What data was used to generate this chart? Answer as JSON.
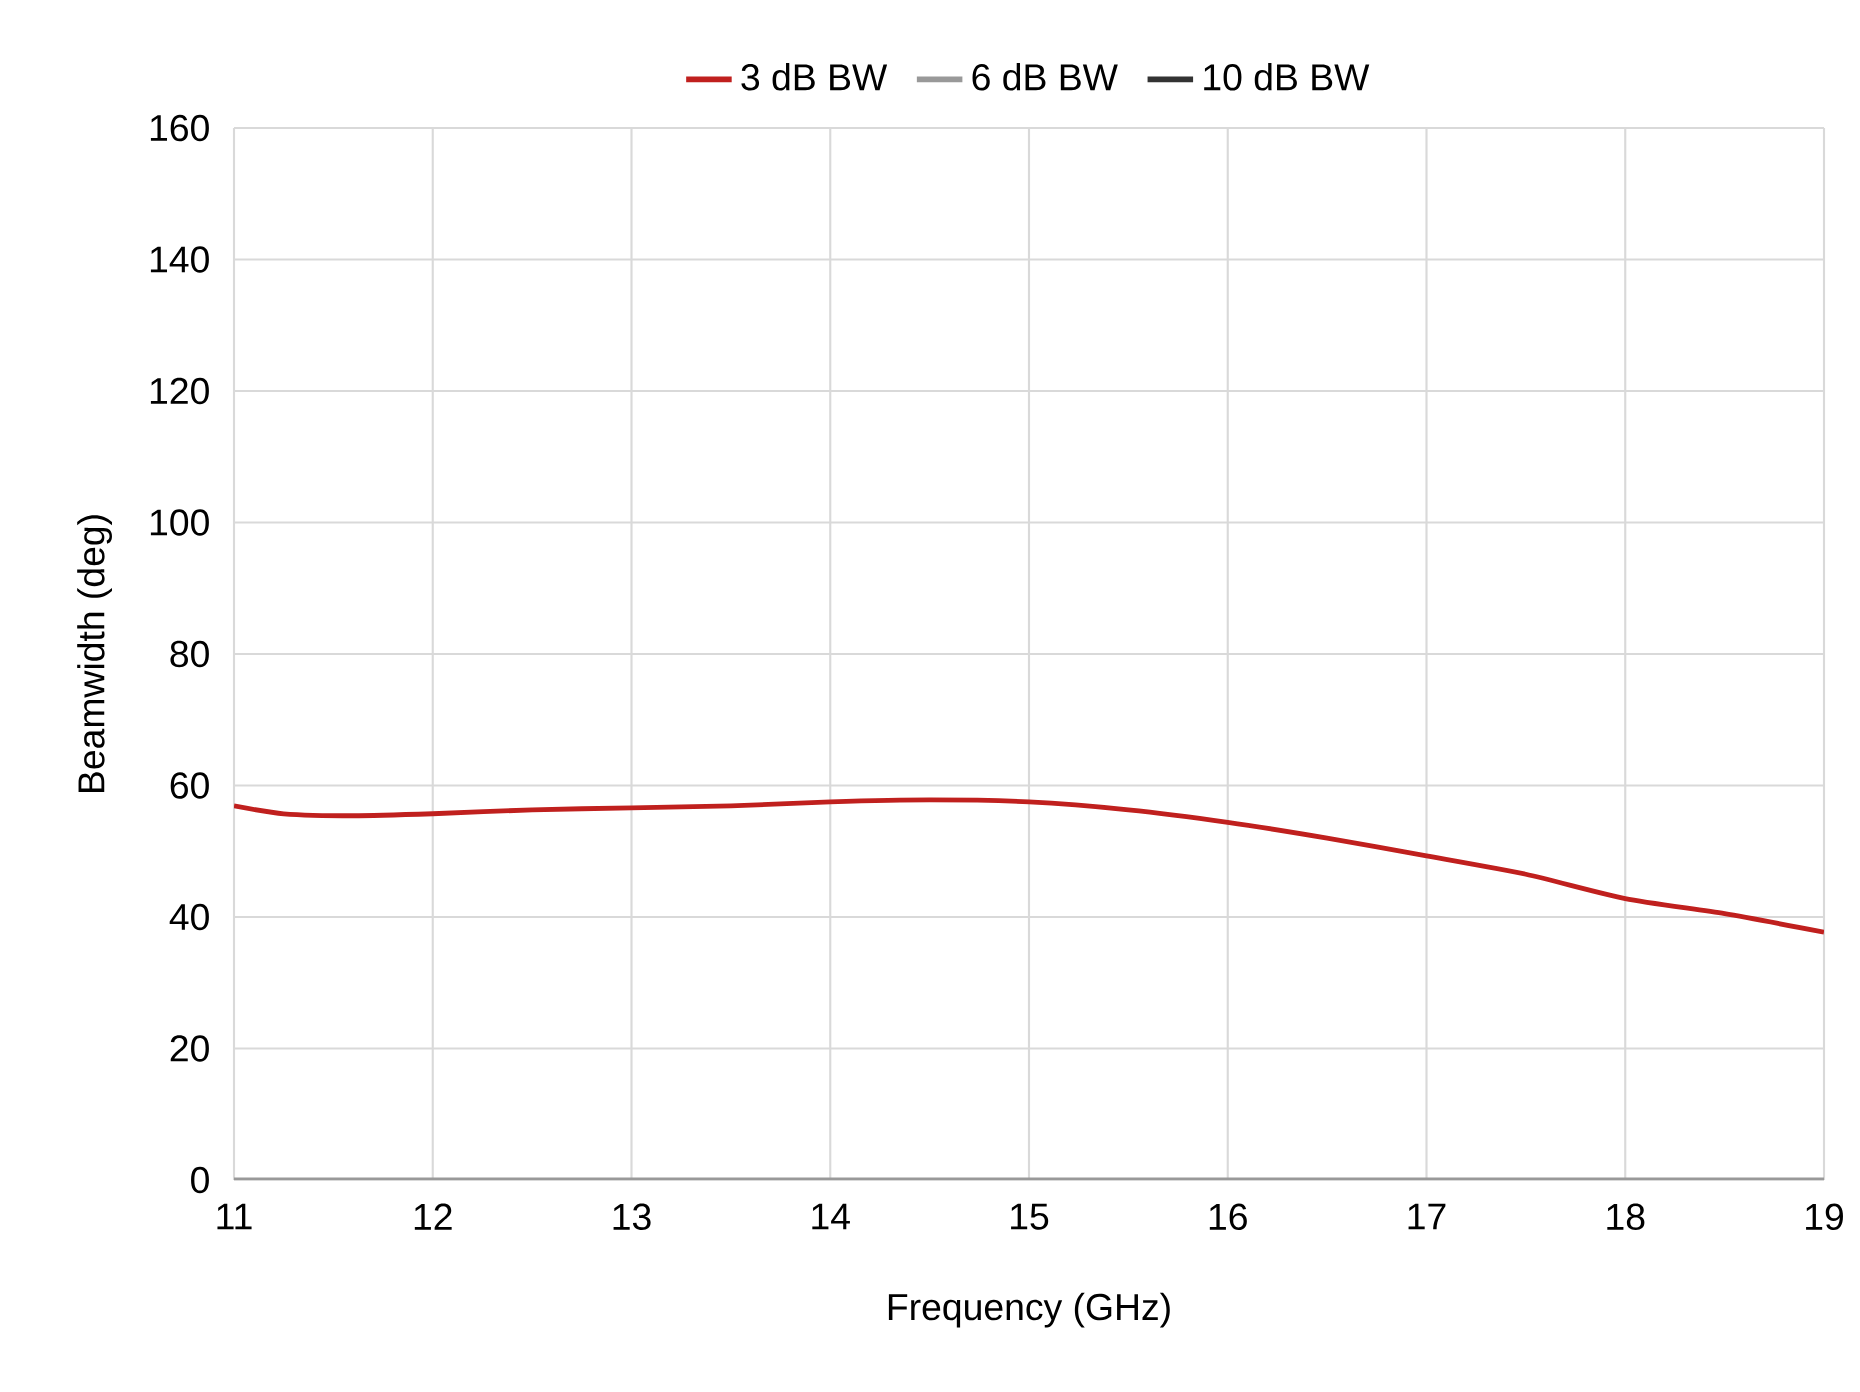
{
  "chart_data": {
    "type": "line",
    "xlabel": "Frequency (GHz)",
    "ylabel": "Beamwidth (deg)",
    "xlim": [
      11,
      19
    ],
    "ylim": [
      0,
      160
    ],
    "xticks": [
      11,
      12,
      13,
      14,
      15,
      16,
      17,
      18,
      19
    ],
    "yticks": [
      0,
      20,
      40,
      60,
      80,
      100,
      120,
      140,
      160
    ],
    "grid": true,
    "legend": "top",
    "marker": "none",
    "line_style": "solid",
    "series": [
      {
        "name": "3 dB BW",
        "color": "#c0201e",
        "x": [
          11,
          11.25,
          11.6,
          12,
          12.5,
          13,
          13.5,
          14,
          14.5,
          15,
          15.5,
          16,
          16.5,
          17,
          17.5,
          18,
          18.5,
          19
        ],
        "values": [
          56.9,
          55.7,
          55.4,
          55.7,
          56.3,
          56.6,
          56.9,
          57.5,
          57.8,
          57.5,
          56.3,
          54.4,
          52.0,
          49.3,
          46.5,
          42.8,
          40.5,
          37.7
        ]
      },
      {
        "name": "6 dB BW",
        "color": "#999999",
        "x": [
          11,
          12,
          13,
          14,
          15,
          16,
          17,
          18,
          19
        ],
        "values": [
          0,
          0,
          0,
          0,
          0,
          0,
          0,
          0,
          0
        ]
      },
      {
        "name": "10 dB BW",
        "color": "#333333"
      }
    ]
  }
}
